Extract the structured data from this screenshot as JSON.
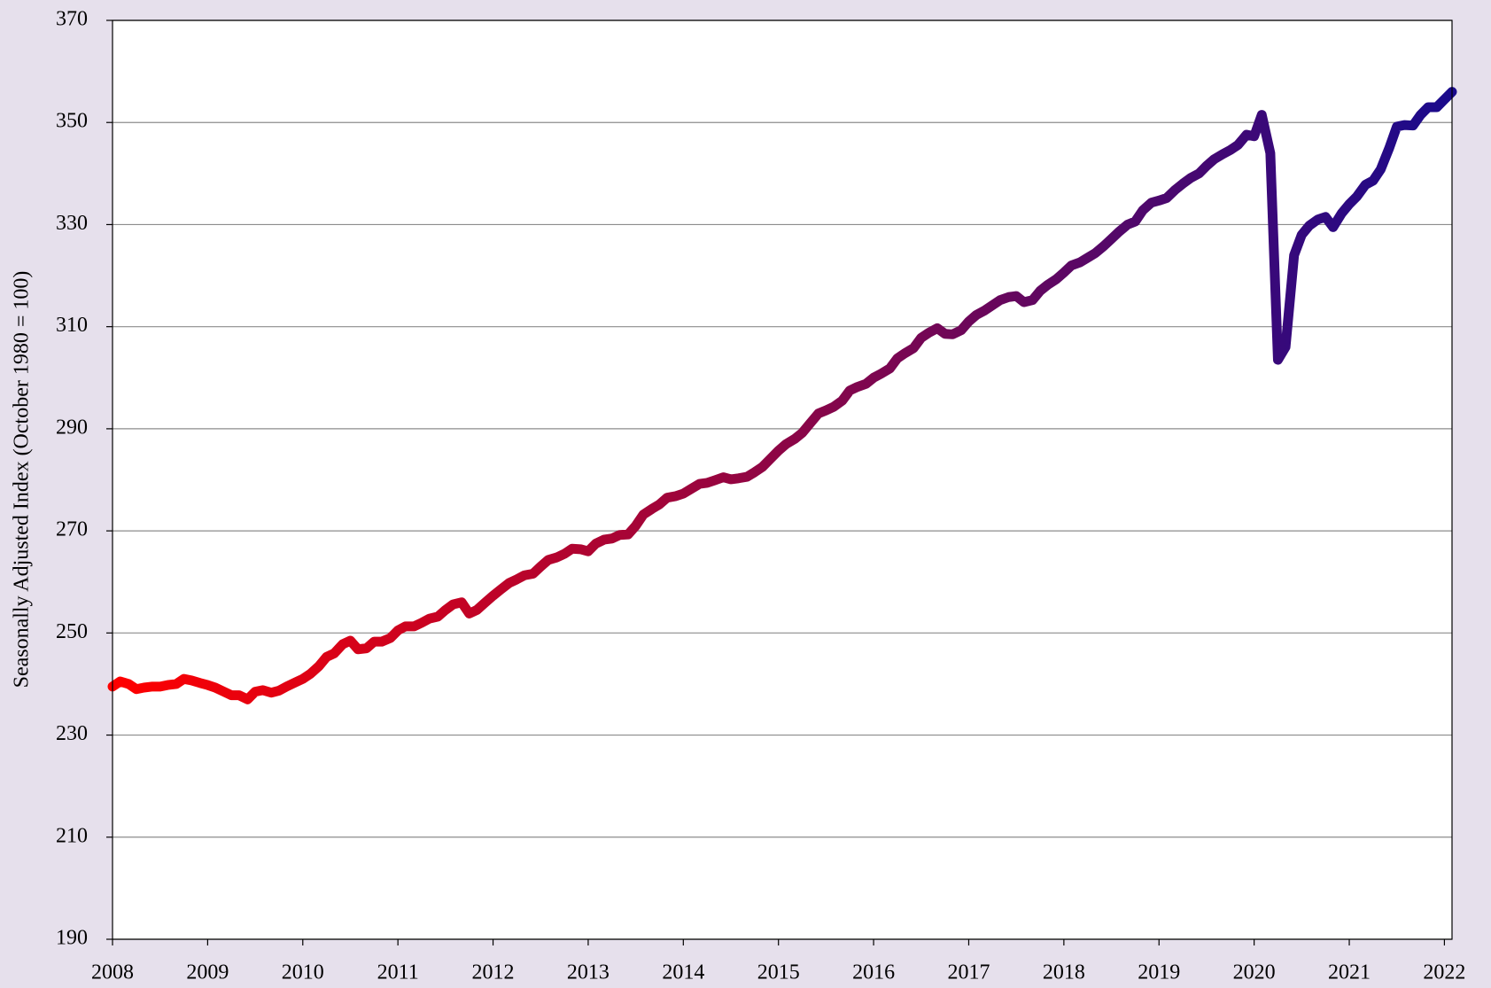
{
  "chart_data": {
    "type": "line",
    "ylabel": "Seasonally Adjusted Index (October 1980 = 100)",
    "colors": [
      "#ff0000",
      "#1a0a8c"
    ],
    "grid": true,
    "xlim": [
      2008,
      2022.08
    ],
    "xticks": [
      2008,
      2009,
      2010,
      2011,
      2012,
      2013,
      2014,
      2015,
      2016,
      2017,
      2018,
      2019,
      2020,
      2021,
      2022
    ],
    "ylim": [
      190,
      370
    ],
    "yticks": [
      190,
      210,
      230,
      250,
      270,
      290,
      310,
      330,
      350,
      370
    ],
    "x": [
      2008,
      2008.08,
      2008.17,
      2008.25,
      2008.33,
      2008.42,
      2008.5,
      2008.58,
      2008.67,
      2008.75,
      2008.83,
      2008.92,
      2009,
      2009.08,
      2009.17,
      2009.25,
      2009.33,
      2009.42,
      2009.5,
      2009.58,
      2009.67,
      2009.75,
      2009.83,
      2009.92,
      2010,
      2010.08,
      2010.17,
      2010.25,
      2010.33,
      2010.42,
      2010.5,
      2010.58,
      2010.67,
      2010.75,
      2010.83,
      2010.92,
      2011,
      2011.08,
      2011.17,
      2011.25,
      2011.33,
      2011.42,
      2011.5,
      2011.58,
      2011.67,
      2011.75,
      2011.83,
      2011.92,
      2012,
      2012.08,
      2012.17,
      2012.25,
      2012.33,
      2012.42,
      2012.5,
      2012.58,
      2012.67,
      2012.75,
      2012.83,
      2012.92,
      2013,
      2013.08,
      2013.17,
      2013.25,
      2013.33,
      2013.42,
      2013.5,
      2013.58,
      2013.67,
      2013.75,
      2013.83,
      2013.92,
      2014,
      2014.08,
      2014.17,
      2014.25,
      2014.33,
      2014.42,
      2014.5,
      2014.58,
      2014.67,
      2014.75,
      2014.83,
      2014.92,
      2015,
      2015.08,
      2015.17,
      2015.25,
      2015.33,
      2015.42,
      2015.5,
      2015.58,
      2015.67,
      2015.75,
      2015.83,
      2015.92,
      2016,
      2016.08,
      2016.17,
      2016.25,
      2016.33,
      2016.42,
      2016.5,
      2016.58,
      2016.67,
      2016.75,
      2016.83,
      2016.92,
      2017,
      2017.08,
      2017.17,
      2017.25,
      2017.33,
      2017.42,
      2017.5,
      2017.58,
      2017.67,
      2017.75,
      2017.83,
      2017.92,
      2018,
      2018.08,
      2018.17,
      2018.25,
      2018.33,
      2018.42,
      2018.5,
      2018.58,
      2018.67,
      2018.75,
      2018.83,
      2018.92,
      2019,
      2019.08,
      2019.17,
      2019.25,
      2019.33,
      2019.42,
      2019.5,
      2019.58,
      2019.67,
      2019.75,
      2019.83,
      2019.92,
      2020,
      2020.08,
      2020.17,
      2020.25,
      2020.33,
      2020.42,
      2020.5,
      2020.58,
      2020.67,
      2020.75,
      2020.83,
      2020.92,
      2021,
      2021.08,
      2021.17,
      2021.25,
      2021.33,
      2021.42,
      2021.5,
      2021.58,
      2021.67,
      2021.75,
      2021.83,
      2021.92,
      2022,
      2022.08
    ],
    "values": [
      239.5,
      240.5,
      240,
      239,
      239.3,
      239.5,
      239.5,
      239.8,
      240,
      241,
      240.7,
      240.2,
      239.8,
      239.3,
      238.5,
      237.8,
      237.8,
      237,
      238.5,
      238.8,
      238.3,
      238.7,
      239.5,
      240.3,
      241,
      242,
      243.5,
      245.3,
      246,
      247.8,
      248.5,
      246.8,
      247,
      248.3,
      248.3,
      249,
      250.5,
      251.3,
      251.3,
      252,
      252.8,
      253.2,
      254.5,
      255.6,
      256,
      253.8,
      254.5,
      256,
      257.3,
      258.5,
      259.8,
      260.5,
      261.3,
      261.6,
      263,
      264.3,
      264.8,
      265.5,
      266.5,
      266.4,
      266,
      267.5,
      268.3,
      268.5,
      269.2,
      269.3,
      271,
      273.2,
      274.3,
      275.2,
      276.5,
      276.8,
      277.3,
      278.2,
      279.2,
      279.4,
      279.9,
      280.5,
      280.1,
      280.3,
      280.6,
      281.5,
      282.5,
      284.2,
      285.7,
      287,
      288,
      289.2,
      291,
      293,
      293.6,
      294.3,
      295.5,
      297.5,
      298.2,
      298.8,
      300,
      300.8,
      301.8,
      303.8,
      304.8,
      305.8,
      307.8,
      308.8,
      309.7,
      308.6,
      308.5,
      309.3,
      311,
      312.3,
      313.2,
      314.2,
      315.2,
      315.8,
      316,
      314.8,
      315.2,
      317,
      318.2,
      319.3,
      320.6,
      322,
      322.6,
      323.5,
      324.4,
      325.8,
      327.2,
      328.6,
      330,
      330.6,
      332.8,
      334.3,
      334.7,
      335.2,
      336.8,
      338,
      339.1,
      340,
      341.5,
      342.8,
      343.8,
      344.6,
      345.6,
      347.6,
      347.3,
      351.5,
      344,
      303.5,
      306,
      324,
      328,
      329.8,
      331,
      331.5,
      329.5,
      332.2,
      334,
      335.5,
      337.8,
      338.6,
      340.8,
      345,
      349.2,
      349.5,
      349.4,
      351.5,
      353,
      353,
      354.5,
      356
    ]
  }
}
